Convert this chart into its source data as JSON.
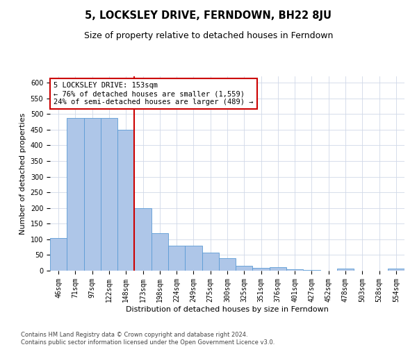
{
  "title": "5, LOCKSLEY DRIVE, FERNDOWN, BH22 8JU",
  "subtitle": "Size of property relative to detached houses in Ferndown",
  "xlabel": "Distribution of detached houses by size in Ferndown",
  "ylabel": "Number of detached properties",
  "categories": [
    "46sqm",
    "71sqm",
    "97sqm",
    "122sqm",
    "148sqm",
    "173sqm",
    "198sqm",
    "224sqm",
    "249sqm",
    "275sqm",
    "300sqm",
    "325sqm",
    "351sqm",
    "376sqm",
    "401sqm",
    "427sqm",
    "452sqm",
    "478sqm",
    "503sqm",
    "528sqm",
    "554sqm"
  ],
  "values": [
    103,
    487,
    487,
    487,
    450,
    200,
    120,
    80,
    80,
    57,
    40,
    15,
    9,
    10,
    4,
    2,
    1,
    6,
    1,
    1,
    6
  ],
  "bar_color": "#aec6e8",
  "bar_edge_color": "#5b9bd5",
  "vline_index": 4.5,
  "vline_color": "#cc0000",
  "annotation_line1": "5 LOCKSLEY DRIVE: 153sqm",
  "annotation_line2": "← 76% of detached houses are smaller (1,559)",
  "annotation_line3": "24% of semi-detached houses are larger (489) →",
  "annotation_box_color": "#ffffff",
  "annotation_box_edge_color": "#cc0000",
  "footer_text": "Contains HM Land Registry data © Crown copyright and database right 2024.\nContains public sector information licensed under the Open Government Licence v3.0.",
  "ylim": [
    0,
    620
  ],
  "yticks": [
    0,
    50,
    100,
    150,
    200,
    250,
    300,
    350,
    400,
    450,
    500,
    550,
    600
  ],
  "background_color": "#ffffff",
  "grid_color": "#d0d8e8",
  "title_fontsize": 10.5,
  "subtitle_fontsize": 9,
  "xlabel_fontsize": 8,
  "ylabel_fontsize": 8,
  "tick_fontsize": 7,
  "annotation_fontsize": 7.5,
  "footer_fontsize": 6
}
